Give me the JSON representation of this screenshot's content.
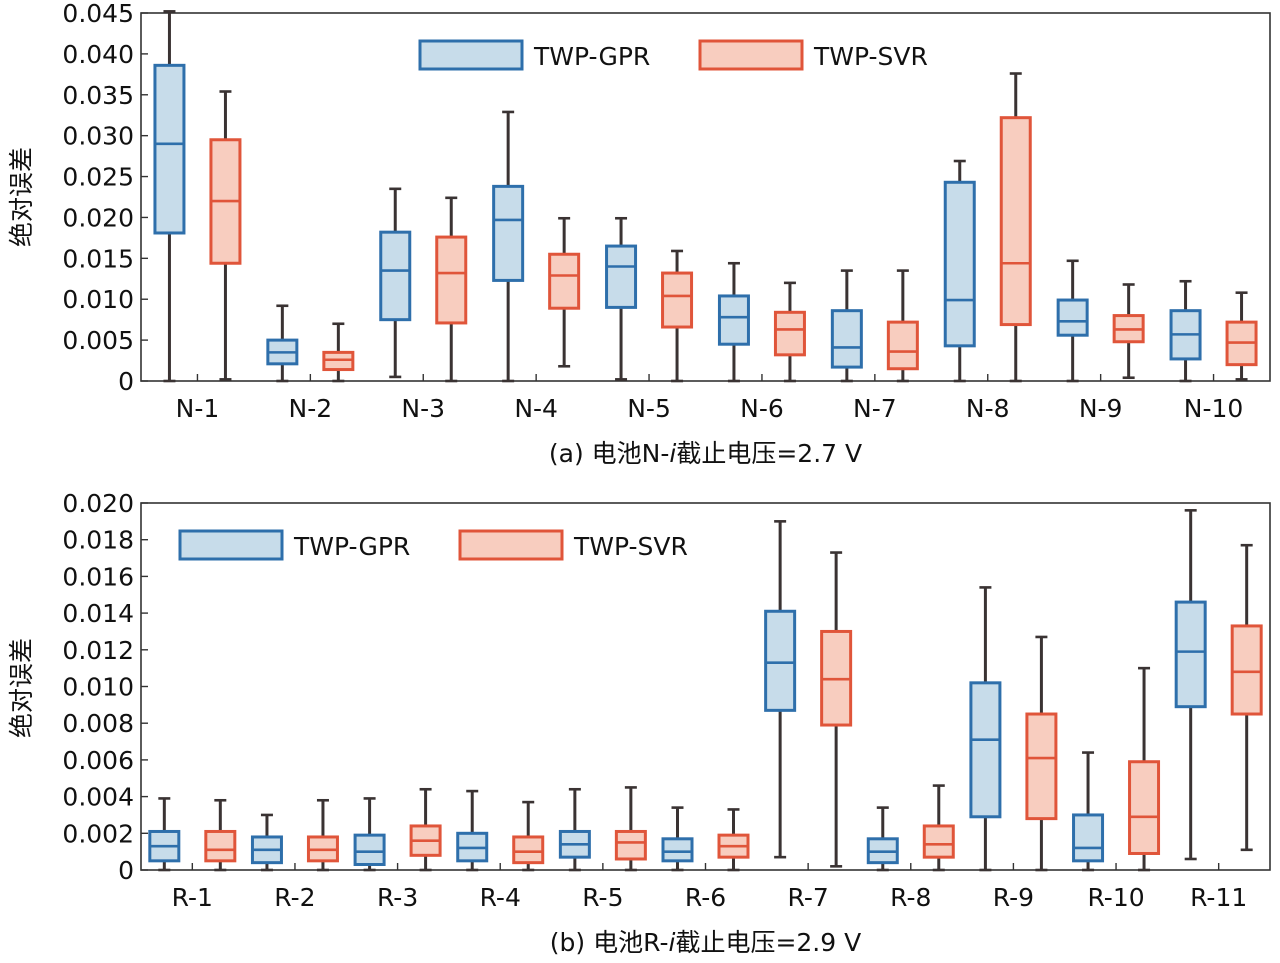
{
  "colors": {
    "gpr_stroke": "#2e6fab",
    "gpr_fill": "#c7dcea",
    "svr_stroke": "#e0553a",
    "svr_fill": "#f8cdbf",
    "whisker": "#3a3333"
  },
  "chart_data": [
    {
      "type": "box",
      "caption": "(a) 电池N-i截止电压=2.7 V",
      "caption_parts": {
        "pre": "(a) 电池N-",
        "ital": "i",
        "post": "截止电压=2.7 V"
      },
      "ylabel": "绝对误差",
      "ylim": [
        0,
        0.045
      ],
      "yticks": [
        "0",
        "0.005",
        "0.010",
        "0.015",
        "0.020",
        "0.025",
        "0.030",
        "0.035",
        "0.040",
        "0.045"
      ],
      "tick_values": [
        0,
        0.005,
        0.01,
        0.015,
        0.02,
        0.025,
        0.03,
        0.035,
        0.04,
        0.045
      ],
      "legend_position": "top-center",
      "categories": [
        "N-1",
        "N-2",
        "N-3",
        "N-4",
        "N-5",
        "N-6",
        "N-7",
        "N-8",
        "N-9",
        "N-10"
      ],
      "series": [
        {
          "name": "TWP-GPR",
          "boxes": [
            [
              0,
              0.0181,
              0.029,
              0.0386,
              0.0452
            ],
            [
              0,
              0.0021,
              0.0035,
              0.005,
              0.0092
            ],
            [
              0.0005,
              0.0075,
              0.0135,
              0.0182,
              0.0235
            ],
            [
              0,
              0.0123,
              0.0197,
              0.0238,
              0.0329
            ],
            [
              0.0002,
              0.009,
              0.014,
              0.0165,
              0.0199
            ],
            [
              0,
              0.0045,
              0.0078,
              0.0104,
              0.0144
            ],
            [
              0,
              0.0017,
              0.0041,
              0.0086,
              0.0135
            ],
            [
              0,
              0.0043,
              0.0099,
              0.0243,
              0.0269
            ],
            [
              0,
              0.0056,
              0.0073,
              0.0099,
              0.0147
            ],
            [
              0,
              0.0027,
              0.0057,
              0.0086,
              0.0122
            ]
          ]
        },
        {
          "name": "TWP-SVR",
          "boxes": [
            [
              0.0002,
              0.0144,
              0.022,
              0.0295,
              0.0354
            ],
            [
              0,
              0.0014,
              0.0026,
              0.0035,
              0.007
            ],
            [
              0,
              0.0071,
              0.0132,
              0.0176,
              0.0224
            ],
            [
              0.0018,
              0.0089,
              0.0129,
              0.0155,
              0.0199
            ],
            [
              0,
              0.0066,
              0.0104,
              0.0132,
              0.0159
            ],
            [
              0,
              0.0032,
              0.0063,
              0.0084,
              0.012
            ],
            [
              0,
              0.0015,
              0.0036,
              0.0072,
              0.0135
            ],
            [
              0,
              0.0069,
              0.0144,
              0.0322,
              0.0376
            ],
            [
              0.0004,
              0.0048,
              0.0063,
              0.008,
              0.0118
            ],
            [
              0.0002,
              0.002,
              0.0047,
              0.0072,
              0.0108
            ]
          ]
        }
      ]
    },
    {
      "type": "box",
      "caption": "(b) 电池R-i截止电压=2.9 V",
      "caption_parts": {
        "pre": "(b) 电池R-",
        "ital": "i",
        "post": "截止电压=2.9 V"
      },
      "ylabel": "绝对误差",
      "ylim": [
        0,
        0.02
      ],
      "yticks": [
        "0",
        "0.002",
        "0.004",
        "0.006",
        "0.008",
        "0.010",
        "0.012",
        "0.014",
        "0.016",
        "0.018",
        "0.020"
      ],
      "tick_values": [
        0,
        0.002,
        0.004,
        0.006,
        0.008,
        0.01,
        0.012,
        0.014,
        0.016,
        0.018,
        0.02
      ],
      "legend_position": "top-left",
      "categories": [
        "R-1",
        "R-2",
        "R-3",
        "R-4",
        "R-5",
        "R-6",
        "R-7",
        "R-8",
        "R-9",
        "R-10",
        "R-11"
      ],
      "series": [
        {
          "name": "TWP-GPR",
          "boxes": [
            [
              0,
              0.0005,
              0.0013,
              0.0021,
              0.0039
            ],
            [
              0,
              0.0004,
              0.0011,
              0.0018,
              0.003
            ],
            [
              0,
              0.0003,
              0.001,
              0.0019,
              0.0039
            ],
            [
              0,
              0.0005,
              0.0012,
              0.002,
              0.0043
            ],
            [
              0,
              0.0007,
              0.0014,
              0.0021,
              0.0044
            ],
            [
              0,
              0.0005,
              0.001,
              0.0017,
              0.0034
            ],
            [
              0.0007,
              0.0087,
              0.0113,
              0.0141,
              0.019
            ],
            [
              0,
              0.0004,
              0.001,
              0.0017,
              0.0034
            ],
            [
              0,
              0.0029,
              0.0071,
              0.0102,
              0.0154
            ],
            [
              0,
              0.0005,
              0.0012,
              0.003,
              0.0064
            ],
            [
              0.0006,
              0.0089,
              0.0119,
              0.0146,
              0.0196
            ]
          ]
        },
        {
          "name": "TWP-SVR",
          "boxes": [
            [
              0,
              0.0005,
              0.0011,
              0.0021,
              0.0038
            ],
            [
              0,
              0.0005,
              0.0011,
              0.0018,
              0.0038
            ],
            [
              0,
              0.0008,
              0.0016,
              0.0024,
              0.0044
            ],
            [
              0,
              0.0004,
              0.001,
              0.0018,
              0.0037
            ],
            [
              0,
              0.0006,
              0.0015,
              0.0021,
              0.0045
            ],
            [
              0,
              0.0007,
              0.0013,
              0.0019,
              0.0033
            ],
            [
              0.0002,
              0.0079,
              0.0104,
              0.013,
              0.0173
            ],
            [
              0,
              0.0007,
              0.0014,
              0.0024,
              0.0046
            ],
            [
              0,
              0.0028,
              0.0061,
              0.0085,
              0.0127
            ],
            [
              0,
              0.0009,
              0.0029,
              0.0059,
              0.011
            ],
            [
              0.0011,
              0.0085,
              0.0108,
              0.0133,
              0.0177
            ]
          ]
        }
      ]
    }
  ]
}
